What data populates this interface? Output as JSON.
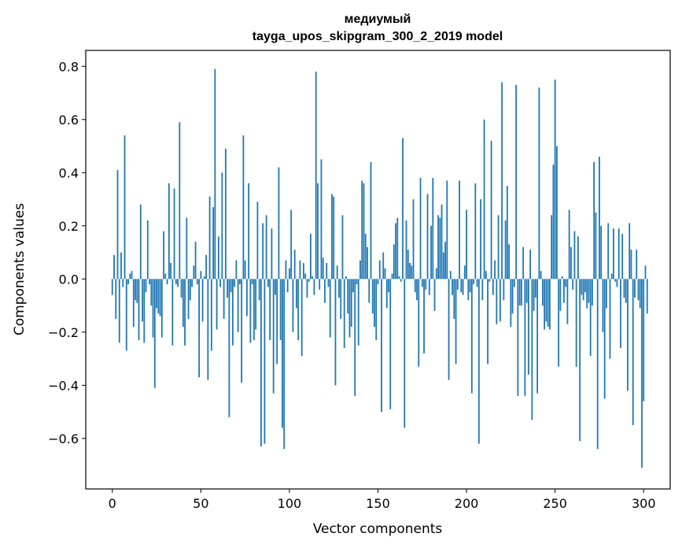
{
  "chart_data": {
    "type": "bar",
    "title": "медиумый",
    "subtitle": "tayga_upos_skipgram_300_2_2019 model",
    "xlabel": "Vector components",
    "ylabel": "Components values",
    "xlim": [
      -15,
      315
    ],
    "ylim": [
      -0.79,
      0.86
    ],
    "xticks": [
      0,
      50,
      100,
      150,
      200,
      250,
      300
    ],
    "yticks": [
      -0.6,
      -0.4,
      -0.2,
      0.0,
      0.2,
      0.4,
      0.6,
      0.8
    ],
    "xtick_labels": [
      "0",
      "50",
      "100",
      "150",
      "200",
      "250",
      "300"
    ],
    "ytick_labels": [
      "−0.6",
      "−0.4",
      "−0.2",
      "0.0",
      "0.2",
      "0.4",
      "0.6",
      "0.8"
    ],
    "bar_color": "#1f77b4",
    "grid": false,
    "values": [
      -0.06,
      0.09,
      -0.15,
      0.41,
      -0.24,
      0.1,
      -0.03,
      0.54,
      -0.27,
      -0.02,
      0.02,
      0.03,
      -0.18,
      -0.08,
      -0.09,
      -0.23,
      0.28,
      -0.16,
      -0.24,
      -0.05,
      0.22,
      -0.02,
      -0.1,
      -0.22,
      -0.41,
      -0.11,
      -0.13,
      -0.14,
      -0.22,
      0.18,
      0.02,
      -0.02,
      0.36,
      0.06,
      -0.25,
      0.34,
      -0.02,
      -0.03,
      0.59,
      -0.07,
      -0.18,
      -0.25,
      0.23,
      -0.15,
      -0.08,
      -0.03,
      0.05,
      0.14,
      -0.02,
      -0.37,
      0.03,
      -0.16,
      0.01,
      0.09,
      -0.38,
      0.31,
      -0.27,
      0.27,
      0.79,
      -0.19,
      0.16,
      -0.03,
      0.4,
      -0.15,
      0.49,
      -0.07,
      -0.52,
      -0.05,
      -0.25,
      -0.03,
      0.07,
      -0.2,
      -0.02,
      -0.39,
      0.54,
      0.07,
      -0.14,
      0.36,
      -0.24,
      -0.02,
      -0.23,
      -0.19,
      0.29,
      -0.08,
      -0.63,
      0.21,
      -0.62,
      0.24,
      -0.03,
      -0.23,
      0.19,
      -0.43,
      -0.06,
      -0.32,
      0.42,
      -0.23,
      -0.56,
      -0.64,
      0.07,
      -0.05,
      0.04,
      0.26,
      -0.2,
      0.11,
      -0.11,
      -0.23,
      0.07,
      -0.29,
      0.06,
      0.02,
      -0.07,
      -0.01,
      0.17,
      0.01,
      -0.06,
      0.78,
      0.36,
      -0.04,
      0.45,
      0.08,
      -0.09,
      0.06,
      -0.03,
      -0.22,
      0.32,
      0.31,
      -0.4,
      0.05,
      -0.07,
      -0.15,
      0.24,
      -0.26,
      0.01,
      -0.13,
      -0.22,
      -0.18,
      -0.05,
      -0.44,
      -0.02,
      -0.25,
      0.07,
      0.37,
      0.36,
      0.17,
      0.12,
      -0.09,
      0.44,
      -0.13,
      -0.18,
      -0.23,
      -0.02,
      0.07,
      -0.5,
      0.1,
      0.04,
      -0.11,
      -0.05,
      -0.49,
      0.02,
      0.13,
      0.21,
      0.23,
      0.01,
      -0.01,
      0.53,
      -0.56,
      0.22,
      0.11,
      0.06,
      0.05,
      0.3,
      -0.05,
      -0.08,
      -0.33,
      0.38,
      -0.03,
      -0.28,
      -0.04,
      0.32,
      -0.06,
      0.2,
      0.38,
      -0.12,
      0.04,
      0.24,
      0.23,
      0.28,
      0.1,
      0.14,
      0.37,
      -0.38,
      0.03,
      -0.06,
      -0.15,
      -0.32,
      -0.04,
      0.37,
      -0.05,
      -0.06,
      0.05,
      0.26,
      -0.08,
      -0.05,
      -0.43,
      -0.02,
      0.36,
      -0.03,
      -0.62,
      0.3,
      -0.08,
      0.6,
      0.03,
      -0.32,
      -0.01,
      0.52,
      -0.06,
      0.07,
      -0.17,
      0.24,
      -0.16,
      0.74,
      -0.08,
      0.22,
      0.35,
      0.13,
      -0.18,
      -0.13,
      -0.03,
      0.73,
      -0.44,
      -0.1,
      -0.1,
      0.12,
      -0.44,
      -0.09,
      -0.36,
      0.11,
      -0.53,
      -0.12,
      -0.07,
      -0.43,
      0.72,
      0.03,
      -0.1,
      -0.19,
      -0.16,
      -0.18,
      -0.19,
      0.24,
      0.43,
      0.75,
      0.5,
      -0.33,
      -0.12,
      0.01,
      -0.09,
      -0.03,
      -0.17,
      0.26,
      0.12,
      -0.04,
      0.18,
      -0.33,
      0.16,
      -0.61,
      -0.06,
      -0.08,
      -0.05,
      -0.11,
      -0.09,
      -0.29,
      -0.1,
      0.44,
      0.25,
      -0.64,
      0.46,
      0.2,
      -0.2,
      -0.45,
      -0.11,
      0.21,
      -0.3,
      0.02,
      0.19,
      -0.01,
      -0.03,
      0.19,
      -0.26,
      0.17,
      -0.07,
      -0.09,
      -0.42,
      0.21,
      0.11,
      -0.55,
      -0.07,
      0.11,
      -0.08,
      -0.11,
      -0.71,
      -0.46,
      0.05,
      -0.13
    ]
  }
}
